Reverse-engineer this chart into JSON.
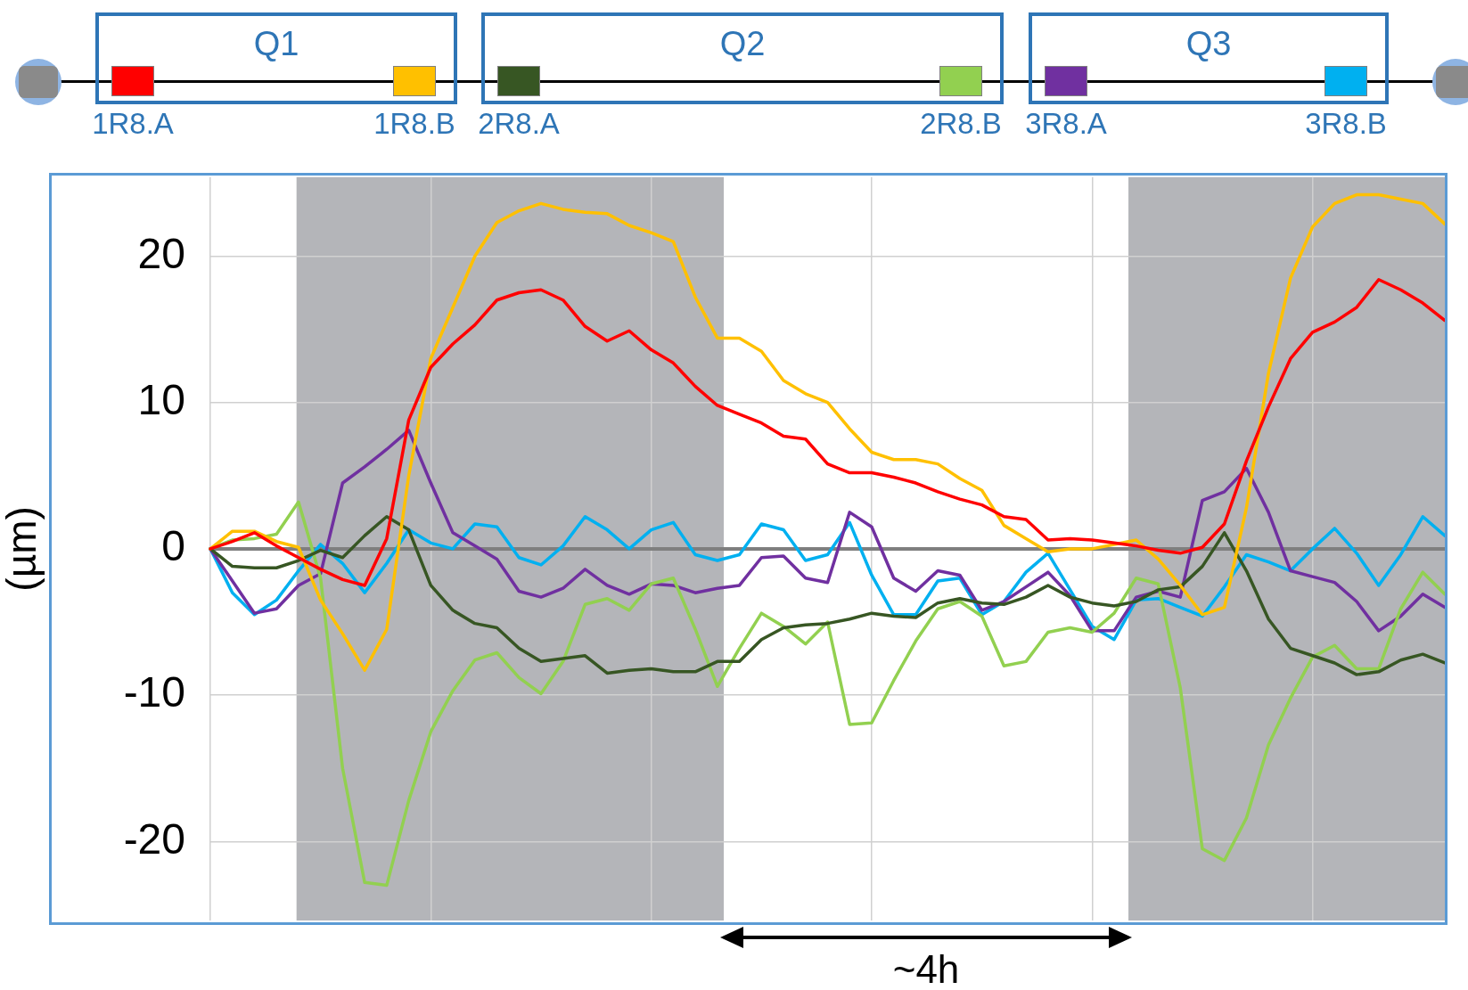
{
  "chart_data": {
    "type": "line",
    "ylabel": "(µm)",
    "legend": "top",
    "grid": true,
    "tick_labels": "y",
    "marker": "none",
    "line_style": "solid",
    "categories": [
      null,
      null,
      null,
      null,
      null,
      null,
      null,
      null,
      null,
      null,
      null,
      null,
      null,
      null,
      null,
      null,
      null,
      null,
      null,
      null,
      null,
      null,
      null,
      null,
      null,
      null,
      null,
      null,
      null,
      null,
      null,
      null,
      null,
      null,
      null,
      null,
      null,
      null,
      null,
      null,
      null,
      null,
      null,
      null,
      null,
      null,
      null,
      null,
      null,
      null,
      null,
      null,
      null,
      null,
      null,
      null,
      null
    ],
    "ylim": [
      -25.4,
      25.4
    ],
    "yticks": [
      -20,
      -10,
      0,
      10,
      20
    ],
    "annotations": [
      "Q1",
      "Q2",
      "Q3",
      "~4h"
    ],
    "series": [
      {
        "name": "1R8.A",
        "color": "#ff0000",
        "values": [
          0,
          0.5,
          1.1,
          0.2,
          -0.6,
          -1.4,
          -2.1,
          -2.5,
          0.7,
          8.8,
          12.4,
          14,
          15.3,
          17,
          17.5,
          17.7,
          17,
          15.2,
          14.2,
          14.9,
          13.6,
          12.7,
          11.1,
          9.8,
          9.2,
          8.6,
          7.7,
          7.5,
          5.8,
          5.2,
          5.2,
          4.9,
          4.5,
          3.9,
          3.4,
          3,
          2.2,
          2,
          0.6,
          0.7,
          0.6,
          0.4,
          0.2,
          -0.1,
          -0.3,
          0.1,
          1.7,
          6,
          9.7,
          13,
          14.8,
          15.5,
          16.5,
          18.4,
          17.7,
          16.8,
          15.6
        ]
      },
      {
        "name": "1R8.B",
        "color": "#ffc000",
        "values": [
          0,
          1.2,
          1.2,
          0.5,
          0.1,
          -3.5,
          -5.8,
          -8.3,
          -5.5,
          5,
          13,
          16.5,
          20,
          22.3,
          23.1,
          23.6,
          23.2,
          23,
          22.9,
          22.1,
          21.6,
          21,
          17.2,
          14.4,
          14.4,
          13.5,
          11.5,
          10.6,
          10,
          8.2,
          6.6,
          6.1,
          6.1,
          5.8,
          4.8,
          4,
          1.6,
          0.7,
          -0.2,
          0,
          0,
          0.3,
          0.6,
          -0.7,
          -2.5,
          -4.5,
          -4,
          2.8,
          12,
          18.5,
          22,
          23.6,
          24.2,
          24.2,
          23.9,
          23.6,
          22.2
        ]
      },
      {
        "name": "2R8.A",
        "color": "#375623",
        "values": [
          0,
          -1.2,
          -1.3,
          -1.3,
          -0.8,
          -0.1,
          -0.6,
          0.9,
          2.2,
          1.3,
          -2.5,
          -4.2,
          -5.1,
          -5.4,
          -6.8,
          -7.7,
          -7.5,
          -7.3,
          -8.5,
          -8.3,
          -8.2,
          -8.4,
          -8.4,
          -7.7,
          -7.7,
          -6.2,
          -5.4,
          -5.2,
          -5.1,
          -4.8,
          -4.4,
          -4.6,
          -4.7,
          -3.7,
          -3.4,
          -3.7,
          -3.8,
          -3.3,
          -2.5,
          -3.3,
          -3.7,
          -3.9,
          -3.6,
          -2.8,
          -2.6,
          -1.2,
          1.1,
          -1.5,
          -4.8,
          -6.8,
          -7.3,
          -7.8,
          -8.6,
          -8.4,
          -7.6,
          -7.2,
          -7.8
        ]
      },
      {
        "name": "2R8.B",
        "color": "#92d050",
        "values": [
          0,
          0.6,
          0.7,
          1,
          3.2,
          -2,
          -15,
          -22.8,
          -23,
          -17.2,
          -12.5,
          -9.7,
          -7.6,
          -7.1,
          -8.8,
          -9.9,
          -7.7,
          -3.8,
          -3.4,
          -4.2,
          -2.4,
          -2,
          -5.5,
          -9.4,
          -6.8,
          -4.4,
          -5.3,
          -6.5,
          -5,
          -12,
          -11.9,
          -9,
          -6.3,
          -4.1,
          -3.6,
          -4.6,
          -8,
          -7.7,
          -5.7,
          -5.4,
          -5.7,
          -4.4,
          -2,
          -2.4,
          -9.5,
          -20.5,
          -21.3,
          -18.4,
          -13.4,
          -10.2,
          -7.4,
          -6.6,
          -8.2,
          -8.2,
          -4.1,
          -1.6,
          -3.1
        ]
      },
      {
        "name": "3R8.A",
        "color": "#7030a0",
        "values": [
          0,
          -2.2,
          -4.4,
          -4.1,
          -2.5,
          -1.7,
          4.5,
          5.6,
          6.8,
          8.1,
          4.5,
          1.1,
          0.2,
          -0.7,
          -2.9,
          -3.3,
          -2.7,
          -1.4,
          -2.5,
          -3.1,
          -2.4,
          -2.5,
          -3,
          -2.7,
          -2.5,
          -0.6,
          -0.5,
          -2,
          -2.3,
          2.5,
          1.5,
          -2,
          -2.9,
          -1.5,
          -1.8,
          -4.2,
          -3.6,
          -2.6,
          -1.6,
          -3.2,
          -5.6,
          -5.6,
          -3.3,
          -2.9,
          -3.3,
          3.3,
          3.9,
          5.5,
          2.5,
          -1.5,
          -1.9,
          -2.3,
          -3.6,
          -5.6,
          -4.6,
          -3.1,
          -4
        ]
      },
      {
        "name": "3R8.B",
        "color": "#00b0f0",
        "values": [
          0,
          -3,
          -4.5,
          -3.5,
          -1.5,
          0.3,
          -1,
          -3,
          -1,
          1.3,
          0.4,
          0,
          1.7,
          1.5,
          -0.6,
          -1.1,
          0.2,
          2.2,
          1.3,
          0,
          1.3,
          1.8,
          -0.4,
          -0.8,
          -0.4,
          1.7,
          1.3,
          -0.8,
          -0.4,
          1.8,
          -1.8,
          -4.5,
          -4.5,
          -2.2,
          -2,
          -4.5,
          -3.6,
          -1.6,
          -0.3,
          -2.8,
          -5.3,
          -6.2,
          -3.5,
          -3.4,
          -4,
          -4.6,
          -2.6,
          -0.4,
          -0.9,
          -1.5,
          0,
          1.4,
          -0.3,
          -2.5,
          -0.4,
          2.2,
          0.9
        ]
      },
      {
        "color": "#7f7f7f",
        "values": [
          0,
          0,
          0,
          0,
          0,
          0,
          0,
          0,
          0,
          0,
          0,
          0,
          0,
          0,
          0,
          0,
          0,
          0,
          0,
          0,
          0,
          0,
          0,
          0,
          0,
          0,
          0,
          0,
          0,
          0,
          0,
          0,
          0,
          0,
          0,
          0,
          0,
          0,
          0,
          0,
          0,
          0,
          0,
          0,
          0,
          0,
          0,
          0,
          0,
          0,
          0,
          0,
          0,
          0,
          0,
          0,
          0
        ]
      }
    ]
  }
}
